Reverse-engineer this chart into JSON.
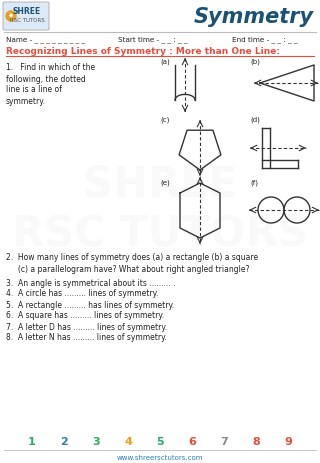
{
  "title": "Symmetry",
  "logo_text1": "SHREE",
  "logo_text2": "RSC TUTORS",
  "name_line": "Name - _ _ _ _ _ _ _ _ _",
  "start_time": "Start time - _ _ : _ _",
  "end_time": "End time - _ _ : _ _",
  "section_title": "Recognizing Lines of Symmetry : More than One Line:",
  "q1_text1": "1.   Find in which of the",
  "q1_text2": "following, the dotted",
  "q1_text3": "line is a line of",
  "q1_text4": "symmetry.",
  "q2_text1": "2.  How many lines of symmetry does (a) a rectangle (b) a square",
  "q2_text2": "     (c) a parallelogram have? What about right angled triangle?",
  "q3_text": "3.  An angle is symmetrical about its ......... .",
  "q4_text": "4.  A circle has ......... lines of symmetry.",
  "q5_text": "5.  A rectangle ......... has lines of symmetry.",
  "q6_text": "6.  A square has ......... lines of symmetry.",
  "q7_text": "7.  A letter D has ......... lines of symmetry.",
  "q8_text": "8.  A letter N has ......... lines of symmetry.",
  "footer_numbers": [
    "1",
    "2",
    "3",
    "4",
    "5",
    "6",
    "7",
    "8",
    "9"
  ],
  "footer_colors": [
    "#27ae60",
    "#2980b9",
    "#27ae60",
    "#f39c12",
    "#27ae60",
    "#e74c3c",
    "#7f8c8d",
    "#e74c3c",
    "#e74c3c"
  ],
  "footer_url": "www.shreersctutors.com",
  "bg_color": "#ffffff",
  "title_color": "#1a5276",
  "section_color": "#e74c3c",
  "text_color": "#222222",
  "logo_color": "#1a5276",
  "separator_color": "#bbbbbb"
}
